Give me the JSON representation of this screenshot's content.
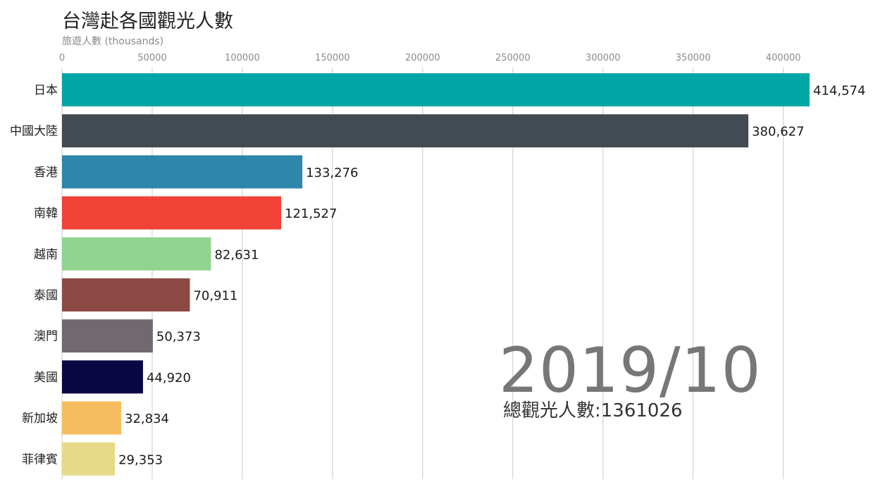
{
  "chart_data": {
    "type": "bar",
    "orientation": "horizontal",
    "title": "台灣赴各國觀光人數",
    "subtitle": "旅遊人數 (thousands)",
    "categories": [
      "日本",
      "中國大陸",
      "香港",
      "南韓",
      "越南",
      "泰國",
      "澳門",
      "美國",
      "新加坡",
      "菲律賓"
    ],
    "values": [
      414574,
      380627,
      133276,
      121527,
      82631,
      70911,
      50373,
      44920,
      32834,
      29353
    ],
    "value_labels": [
      "414,574",
      "380,627",
      "133,276",
      "121,527",
      "82,631",
      "70,911",
      "50,373",
      "44,920",
      "32,834",
      "29,353"
    ],
    "colors": [
      "#00a6a6",
      "#424a53",
      "#2e86ab",
      "#f24236",
      "#90d490",
      "#8b4a44",
      "#706a70",
      "#0b0745",
      "#f6bd60",
      "#e8d986"
    ],
    "x_ticks": [
      0,
      50000,
      100000,
      150000,
      200000,
      250000,
      300000,
      350000,
      400000
    ],
    "x_tick_labels": [
      "0",
      "50000",
      "100000",
      "150000",
      "200000",
      "250000",
      "300000",
      "350000",
      "400000"
    ],
    "xlim": [
      0,
      414574
    ],
    "grid": true,
    "axis_position": "top",
    "period": "2019/10",
    "total_text": "總觀光人數:1361026"
  }
}
